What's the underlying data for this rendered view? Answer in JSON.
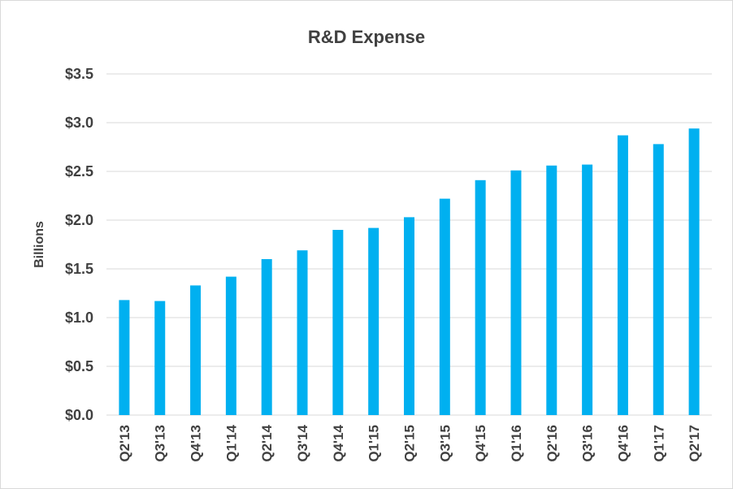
{
  "chart_data": {
    "type": "bar",
    "title": "R&D Expense",
    "xlabel": "",
    "ylabel": "Billions",
    "categories": [
      "Q2'13",
      "Q3'13",
      "Q4'13",
      "Q1'14",
      "Q2'14",
      "Q3'14",
      "Q4'14",
      "Q1'15",
      "Q2'15",
      "Q3'15",
      "Q4'15",
      "Q1'16",
      "Q2'16",
      "Q3'16",
      "Q4'16",
      "Q1'17",
      "Q2'17"
    ],
    "values": [
      1.18,
      1.17,
      1.33,
      1.42,
      1.6,
      1.69,
      1.9,
      1.92,
      2.03,
      2.22,
      2.41,
      2.51,
      2.56,
      2.57,
      2.87,
      2.78,
      2.94
    ],
    "ylim": [
      0,
      3.5
    ],
    "yticks": [
      0,
      0.5,
      1.0,
      1.5,
      2.0,
      2.5,
      3.0,
      3.5
    ],
    "ytick_labels": [
      "$0.0",
      "$0.5",
      "$1.0",
      "$1.5",
      "$2.0",
      "$2.5",
      "$3.0",
      "$3.5"
    ],
    "grid": true,
    "legend": "none",
    "bar_color": "#00b0f0"
  }
}
